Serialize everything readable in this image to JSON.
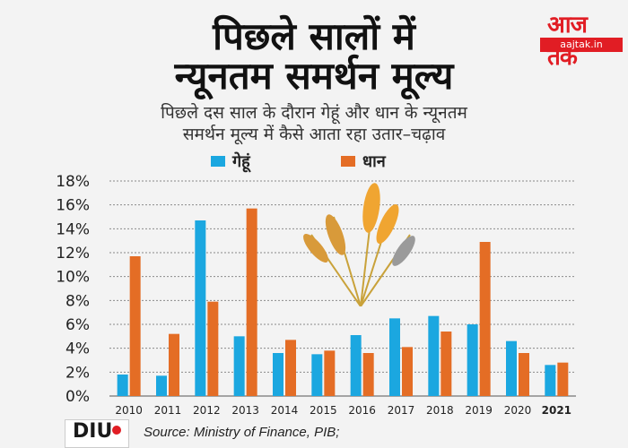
{
  "header": {
    "title_line1": "पिछले सालों में",
    "title_line2": "न्यूनतम समर्थन मूल्य",
    "subtitle_line1": "पिछले दस साल के दौरान गेहूं और धान के न्यूनतम",
    "subtitle_line2": "समर्थन मूल्य में कैसे आता रहा उतार–चढ़ाव"
  },
  "logo": {
    "name": "आज तक",
    "url": "aajtak.in"
  },
  "footer": {
    "diu_logo": "DIU",
    "source": "Source: Ministry of Finance, PIB;"
  },
  "colors": {
    "wheat": "#1ba7e0",
    "paddy": "#e46d25",
    "grid": "#8a8a8a"
  },
  "chart_data": {
    "type": "bar",
    "categories": [
      "2010",
      "2011",
      "2012",
      "2013",
      "2014",
      "2015",
      "2016",
      "2017",
      "2018",
      "2019",
      "2020",
      "2021"
    ],
    "series": [
      {
        "name": "गेहूं",
        "values": [
          1.8,
          1.7,
          14.7,
          5.0,
          3.6,
          3.5,
          5.1,
          6.5,
          6.7,
          6.0,
          4.6,
          2.6
        ]
      },
      {
        "name": "धान",
        "values": [
          11.7,
          5.2,
          7.9,
          15.7,
          4.7,
          3.8,
          3.6,
          4.1,
          5.4,
          12.9,
          3.6,
          2.8
        ]
      }
    ],
    "yticks": [
      "0%",
      "2%",
      "4%",
      "6%",
      "8%",
      "10%",
      "12%",
      "14%",
      "16%",
      "18%"
    ],
    "ylim": [
      0,
      18
    ],
    "grid": true,
    "legend": "top"
  }
}
